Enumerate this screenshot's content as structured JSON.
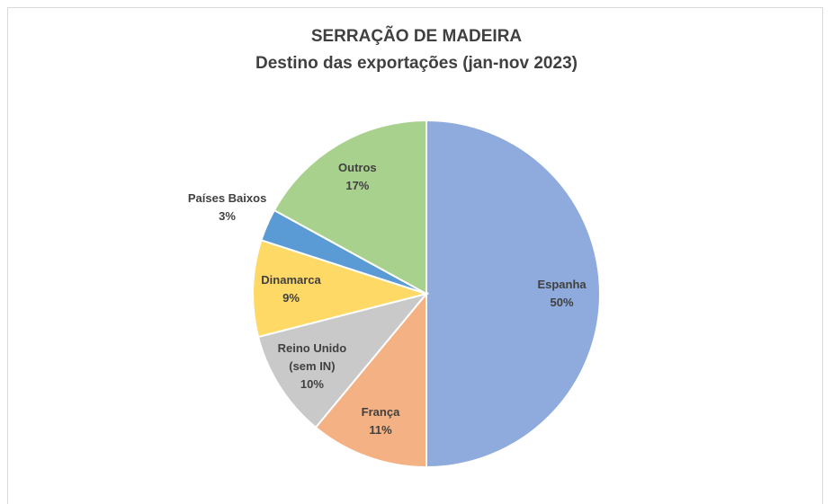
{
  "chart_data": {
    "type": "pie",
    "title": "SERRAÇÃO DE MADEIRA",
    "subtitle": "Destino das exportações (jan-nov 2023)",
    "categories": [
      "Espanha",
      "França",
      "Reino Unido (sem IN)",
      "Dinamarca",
      "Países Baixos",
      "Outros"
    ],
    "values": [
      50,
      11,
      10,
      9,
      3,
      17
    ],
    "value_labels": [
      "50%",
      "11%",
      "10%",
      "9%",
      "3%",
      "17%"
    ],
    "colors": [
      "#8faadc",
      "#f4b183",
      "#c9c9c9",
      "#ffd966",
      "#5b9bd5",
      "#a9d18e"
    ]
  }
}
